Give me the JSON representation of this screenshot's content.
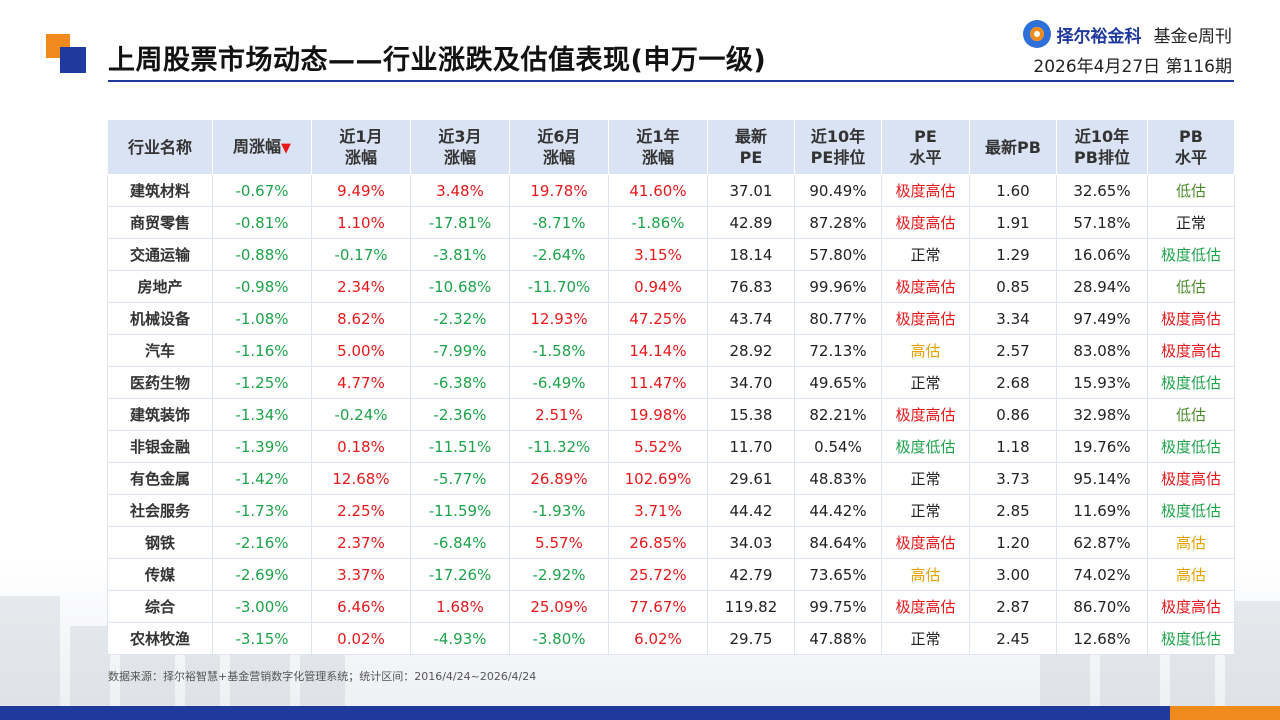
{
  "header": {
    "title": "上周股票市场动态——行业涨跌及估值表现(申万一级)",
    "brand_name": "择尔裕金科",
    "brand_sub": "基金e周刊",
    "issue": "2026年4月27日  第116期"
  },
  "colors": {
    "brand_blue": "#1f3a9c",
    "brand_orange": "#f08a1c",
    "up_red": "#e8191b",
    "down_green": "#1ea34a",
    "mid_yellow": "#e5a000"
  },
  "table": {
    "columns": [
      [
        "行业名称"
      ],
      [
        "周涨幅"
      ],
      [
        "近1月",
        "涨幅"
      ],
      [
        "近3月",
        "涨幅"
      ],
      [
        "近6月",
        "涨幅"
      ],
      [
        "近1年",
        "涨幅"
      ],
      [
        "最新",
        "PE"
      ],
      [
        "近10年",
        "PE排位"
      ],
      [
        "PE",
        "水平"
      ],
      [
        "最新PB"
      ],
      [
        "近10年",
        "PB排位"
      ],
      [
        "PB",
        "水平"
      ]
    ],
    "sort_indicator": "▼",
    "rows": [
      [
        "建筑材料",
        "-0.67%",
        "9.49%",
        "3.48%",
        "19.78%",
        "41.60%",
        "37.01",
        "90.49%",
        "极度高估",
        "1.60",
        "32.65%",
        "低估"
      ],
      [
        "商贸零售",
        "-0.81%",
        "1.10%",
        "-17.81%",
        "-8.71%",
        "-1.86%",
        "42.89",
        "87.28%",
        "极度高估",
        "1.91",
        "57.18%",
        "正常"
      ],
      [
        "交通运输",
        "-0.88%",
        "-0.17%",
        "-3.81%",
        "-2.64%",
        "3.15%",
        "18.14",
        "57.80%",
        "正常",
        "1.29",
        "16.06%",
        "极度低估"
      ],
      [
        "房地产",
        "-0.98%",
        "2.34%",
        "-10.68%",
        "-11.70%",
        "0.94%",
        "76.83",
        "99.96%",
        "极度高估",
        "0.85",
        "28.94%",
        "低估"
      ],
      [
        "机械设备",
        "-1.08%",
        "8.62%",
        "-2.32%",
        "12.93%",
        "47.25%",
        "43.74",
        "80.77%",
        "极度高估",
        "3.34",
        "97.49%",
        "极度高估"
      ],
      [
        "汽车",
        "-1.16%",
        "5.00%",
        "-7.99%",
        "-1.58%",
        "14.14%",
        "28.92",
        "72.13%",
        "高估",
        "2.57",
        "83.08%",
        "极度高估"
      ],
      [
        "医药生物",
        "-1.25%",
        "4.77%",
        "-6.38%",
        "-6.49%",
        "11.47%",
        "34.70",
        "49.65%",
        "正常",
        "2.68",
        "15.93%",
        "极度低估"
      ],
      [
        "建筑装饰",
        "-1.34%",
        "-0.24%",
        "-2.36%",
        "2.51%",
        "19.98%",
        "15.38",
        "82.21%",
        "极度高估",
        "0.86",
        "32.98%",
        "低估"
      ],
      [
        "非银金融",
        "-1.39%",
        "0.18%",
        "-11.51%",
        "-11.32%",
        "5.52%",
        "11.70",
        "0.54%",
        "极度低估",
        "1.18",
        "19.76%",
        "极度低估"
      ],
      [
        "有色金属",
        "-1.42%",
        "12.68%",
        "-5.77%",
        "26.89%",
        "102.69%",
        "29.61",
        "48.83%",
        "正常",
        "3.73",
        "95.14%",
        "极度高估"
      ],
      [
        "社会服务",
        "-1.73%",
        "2.25%",
        "-11.59%",
        "-1.93%",
        "3.71%",
        "44.42",
        "44.42%",
        "正常",
        "2.85",
        "11.69%",
        "极度低估"
      ],
      [
        "钢铁",
        "-2.16%",
        "2.37%",
        "-6.84%",
        "5.57%",
        "26.85%",
        "34.03",
        "84.64%",
        "极度高估",
        "1.20",
        "62.87%",
        "高估"
      ],
      [
        "传媒",
        "-2.69%",
        "3.37%",
        "-17.26%",
        "-2.92%",
        "25.72%",
        "42.79",
        "73.65%",
        "高估",
        "3.00",
        "74.02%",
        "高估"
      ],
      [
        "综合",
        "-3.00%",
        "6.46%",
        "1.68%",
        "25.09%",
        "77.67%",
        "119.82",
        "99.75%",
        "极度高估",
        "2.87",
        "86.70%",
        "极度高估"
      ],
      [
        "农林牧渔",
        "-3.15%",
        "0.02%",
        "-4.93%",
        "-3.80%",
        "6.02%",
        "29.75",
        "47.88%",
        "正常",
        "2.45",
        "12.68%",
        "极度低估"
      ]
    ]
  },
  "source": "数据来源：择尔裕智慧+基金营销数字化管理系统；统计区间：2016/4/24~2026/4/24"
}
